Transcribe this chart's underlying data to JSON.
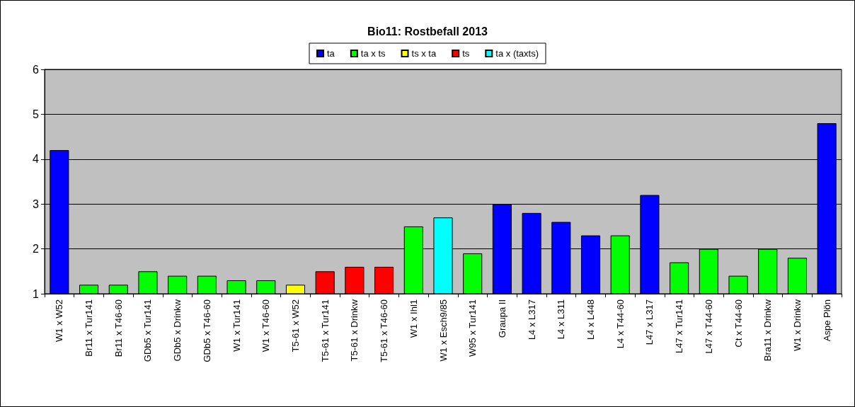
{
  "chart_data": {
    "type": "bar",
    "title": "Bio11: Rostbefall 2013",
    "categories": [
      "W1 x W52",
      "Br11 x Tur141",
      "Br11 x T46-60",
      "GDb5 x Tur141",
      "GDb5 x Drinkw",
      "GDb5 x T46-60",
      "W1 x Tur141",
      "W1 x T46-60",
      "T5-61 x W52",
      "T5-61 x Tur141",
      "T5-61 x Drinkw",
      "T5-61 x T46-60",
      "W1 x Ihl1",
      "W1 x Esch9/85",
      "W95 x Tur141",
      "Graupa II",
      "L4 x L317",
      "L4 x L311",
      "L4 x L448",
      "L4 x T44-60",
      "L47 x L317",
      "L47 x Tur141",
      "L47 x T44-60",
      "Ct x T44-60",
      "Bra11 x Drinkw",
      "W1 x Drinkw",
      "Aspe Plön"
    ],
    "series": [
      {
        "name": "ta",
        "color": "#0000ff",
        "values": [
          4.2,
          null,
          null,
          null,
          null,
          null,
          null,
          null,
          null,
          null,
          null,
          null,
          null,
          null,
          null,
          3.0,
          2.8,
          2.6,
          2.3,
          null,
          3.2,
          null,
          null,
          null,
          null,
          null,
          4.8
        ]
      },
      {
        "name": "ta x ts",
        "color": "#00ff00",
        "values": [
          null,
          1.2,
          1.2,
          1.5,
          1.4,
          1.4,
          1.3,
          1.3,
          null,
          null,
          null,
          null,
          2.5,
          null,
          1.9,
          null,
          null,
          null,
          null,
          2.3,
          null,
          1.7,
          2.0,
          1.4,
          2.0,
          1.8,
          null
        ]
      },
      {
        "name": "ts x ta",
        "color": "#ffff00",
        "values": [
          null,
          null,
          null,
          null,
          null,
          null,
          null,
          null,
          1.2,
          null,
          null,
          null,
          null,
          null,
          null,
          null,
          null,
          null,
          null,
          null,
          null,
          null,
          null,
          null,
          null,
          null,
          null
        ]
      },
      {
        "name": "ts",
        "color": "#ff0000",
        "values": [
          null,
          null,
          null,
          null,
          null,
          null,
          null,
          null,
          null,
          1.5,
          1.6,
          1.6,
          null,
          null,
          null,
          null,
          null,
          null,
          null,
          null,
          null,
          null,
          null,
          null,
          null,
          null,
          null
        ]
      },
      {
        "name": "ta x (taxts)",
        "color": "#00ffff",
        "values": [
          null,
          null,
          null,
          null,
          null,
          null,
          null,
          null,
          null,
          null,
          null,
          null,
          null,
          2.7,
          null,
          null,
          null,
          null,
          null,
          null,
          null,
          null,
          null,
          null,
          null,
          null,
          null
        ]
      }
    ],
    "ylim": [
      1,
      6
    ],
    "yticks": [
      1,
      2,
      3,
      4,
      5,
      6
    ],
    "grid": "y",
    "legend": "top"
  }
}
